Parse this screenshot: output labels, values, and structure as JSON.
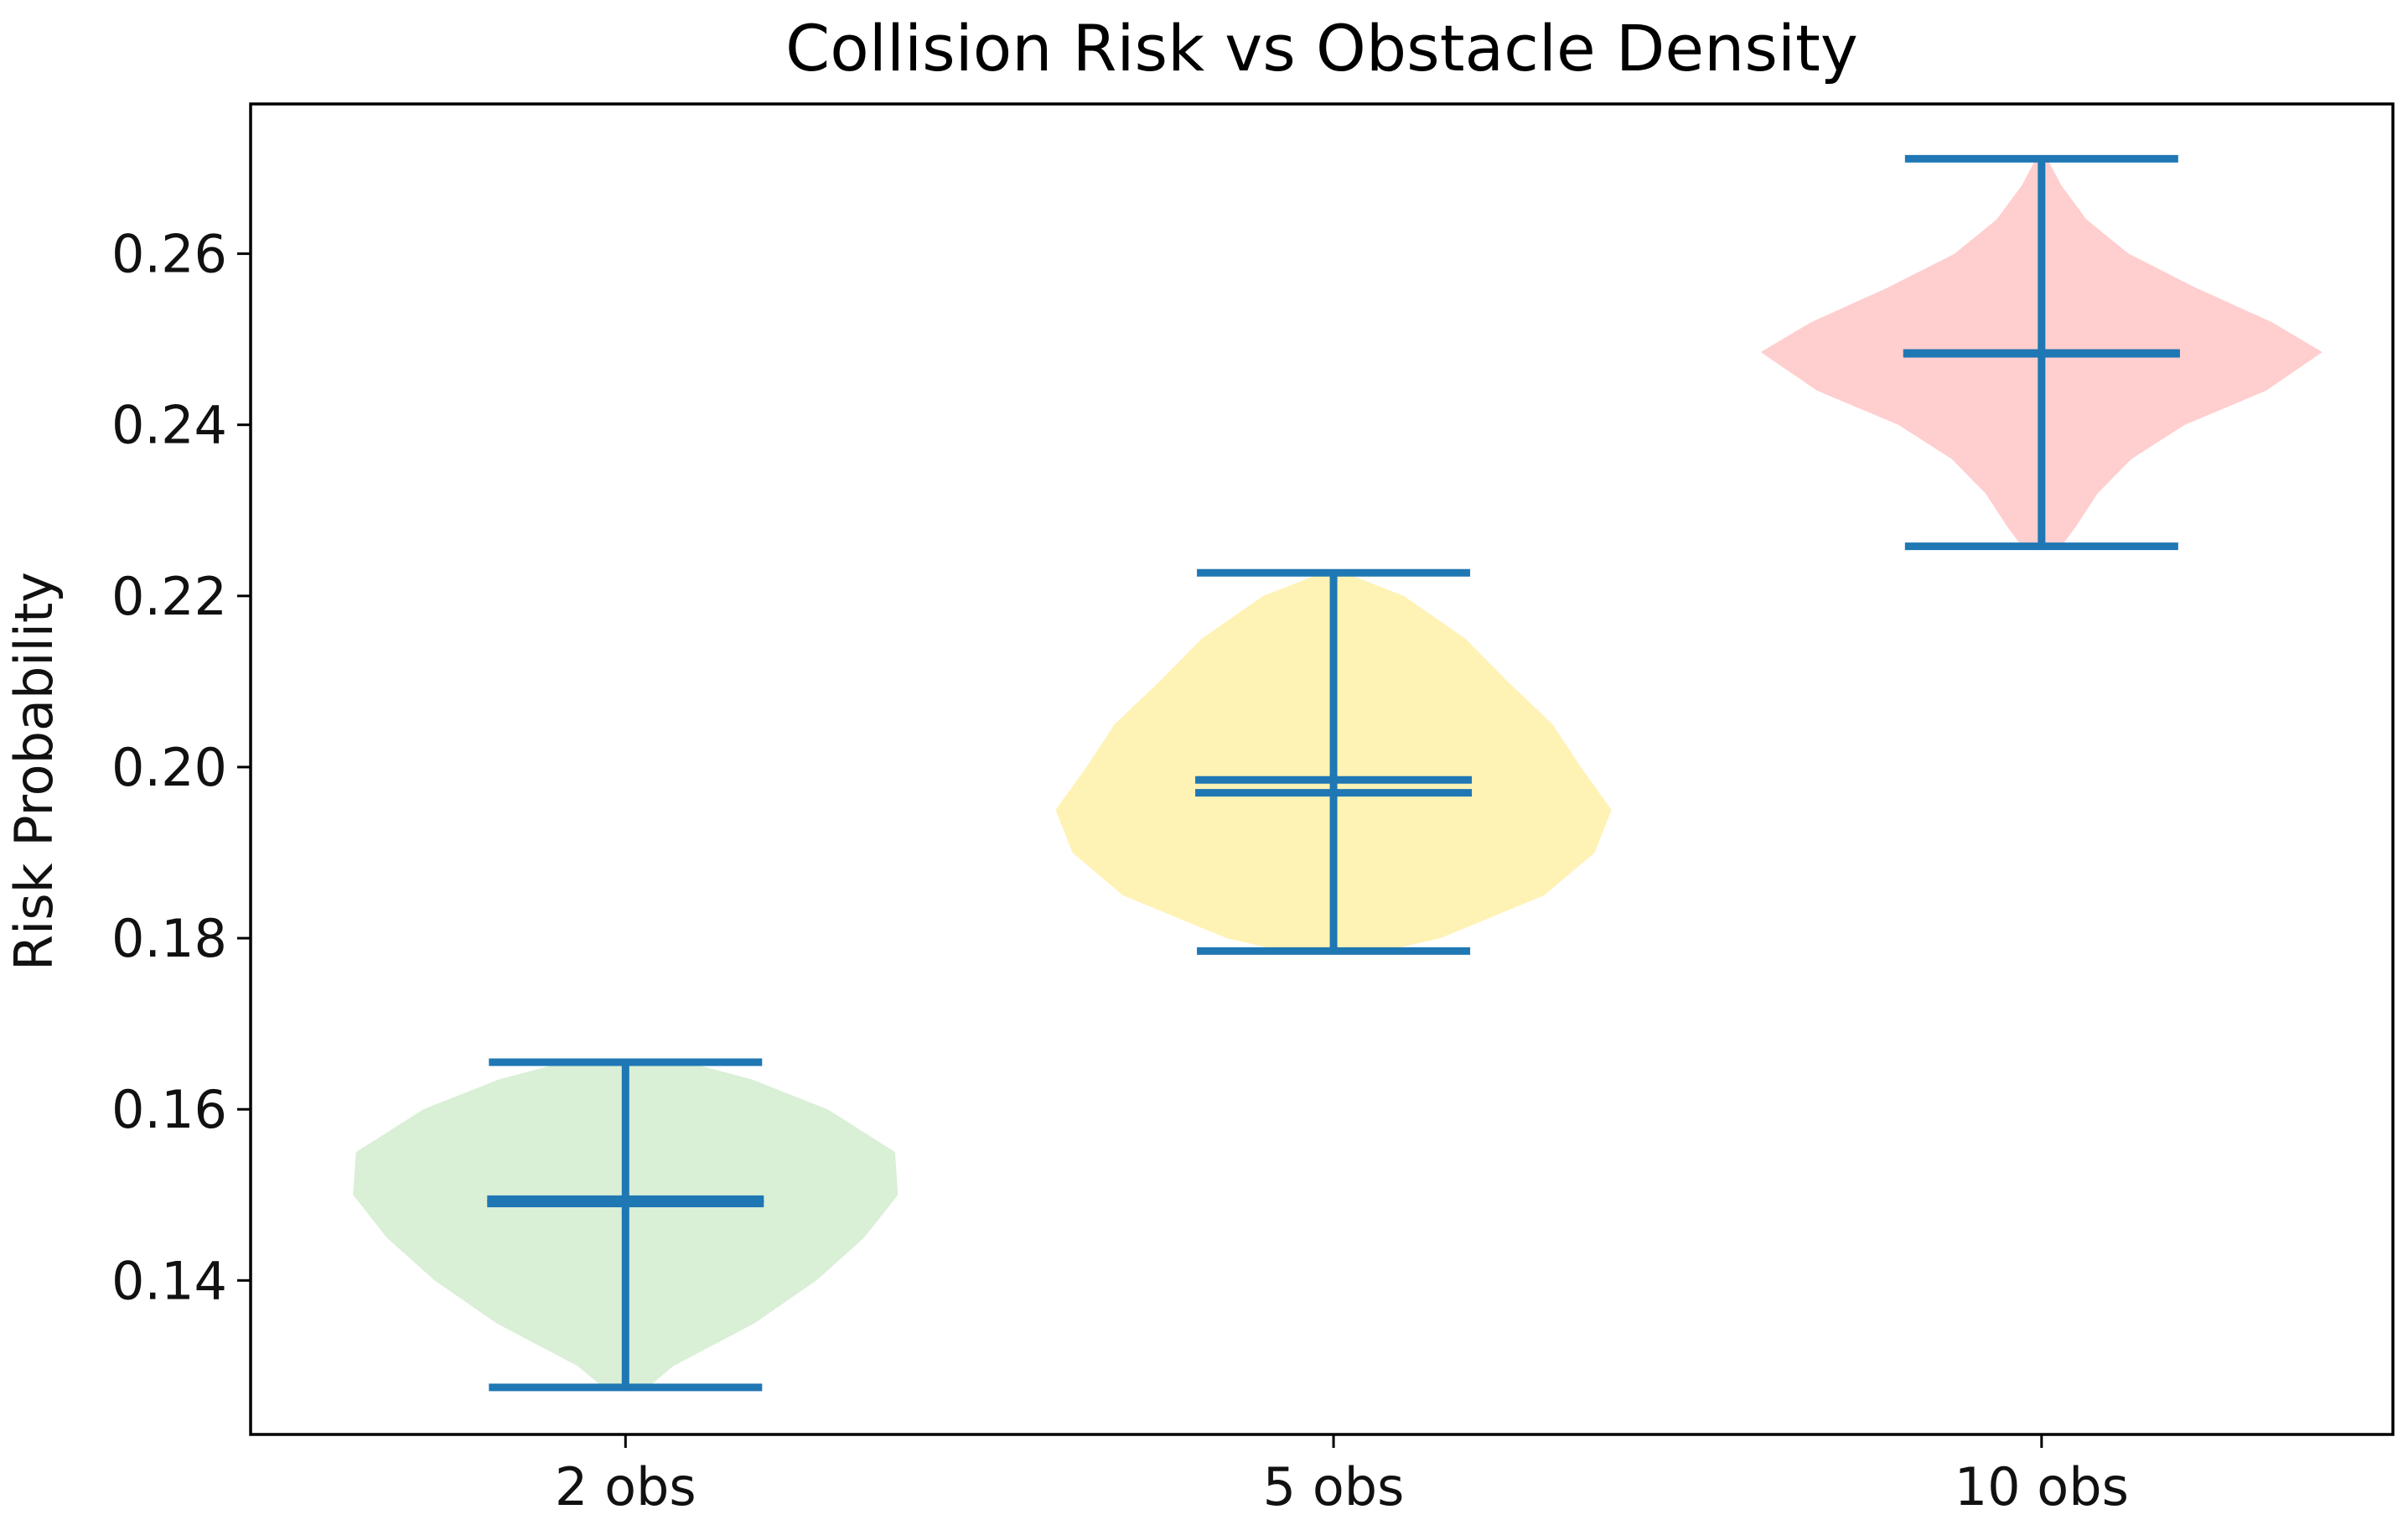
{
  "chart_data": {
    "type": "violin",
    "title": "Collision Risk vs Obstacle Density",
    "xlabel": "",
    "ylabel": "Risk Probability",
    "ylim": [
      0.122,
      0.2775
    ],
    "yticks": [
      0.14,
      0.16,
      0.18,
      0.2,
      0.22,
      0.24,
      0.26
    ],
    "ytick_labels": [
      "0.14",
      "0.16",
      "0.18",
      "0.20",
      "0.22",
      "0.24",
      "0.26"
    ],
    "categories": [
      "2 obs",
      "5 obs",
      "10 obs"
    ],
    "grid": false,
    "stat_line_color": "#1f77b4",
    "series": [
      {
        "name": "2 obs",
        "fill_color": "#d9efd6",
        "min": 0.1275,
        "max": 0.1655,
        "mean": 0.1495,
        "median": 0.149,
        "profile": [
          [
            0.1275,
            0.08
          ],
          [
            0.13,
            0.17
          ],
          [
            0.135,
            0.46
          ],
          [
            0.14,
            0.68
          ],
          [
            0.145,
            0.85
          ],
          [
            0.15,
            0.97
          ],
          [
            0.155,
            0.96
          ],
          [
            0.16,
            0.72
          ],
          [
            0.1635,
            0.45
          ],
          [
            0.1655,
            0.22
          ]
        ]
      },
      {
        "name": "5 obs",
        "fill_color": "#fff2b5",
        "min": 0.1785,
        "max": 0.2227,
        "mean": 0.1985,
        "median": 0.197,
        "profile": [
          [
            0.1785,
            0.18
          ],
          [
            0.18,
            0.38
          ],
          [
            0.185,
            0.75
          ],
          [
            0.19,
            0.93
          ],
          [
            0.195,
            0.99
          ],
          [
            0.2,
            0.88
          ],
          [
            0.205,
            0.78
          ],
          [
            0.21,
            0.62
          ],
          [
            0.215,
            0.47
          ],
          [
            0.22,
            0.25
          ],
          [
            0.2227,
            0.04
          ]
        ]
      },
      {
        "name": "10 obs",
        "fill_color": "#ffcece",
        "min": 0.2258,
        "max": 0.2711,
        "mean": 0.2484,
        "median": 0.2483,
        "profile": [
          [
            0.2258,
            0.07
          ],
          [
            0.228,
            0.12
          ],
          [
            0.232,
            0.2
          ],
          [
            0.236,
            0.32
          ],
          [
            0.24,
            0.51
          ],
          [
            0.244,
            0.8
          ],
          [
            0.2485,
            1.0
          ],
          [
            0.252,
            0.82
          ],
          [
            0.256,
            0.55
          ],
          [
            0.26,
            0.31
          ],
          [
            0.264,
            0.16
          ],
          [
            0.268,
            0.07
          ],
          [
            0.2711,
            0.02
          ]
        ]
      }
    ]
  }
}
